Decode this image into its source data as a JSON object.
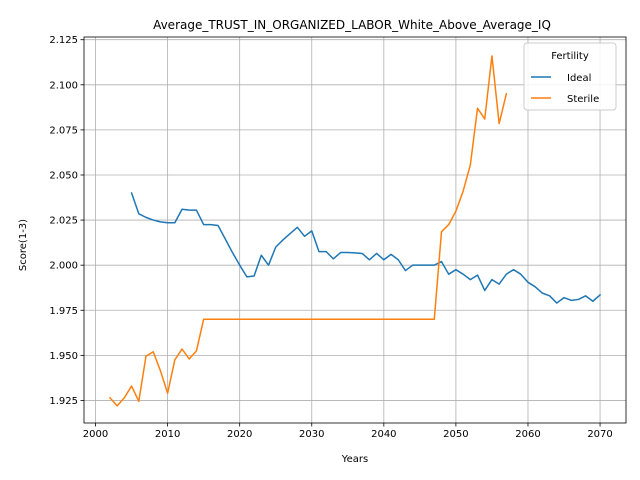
{
  "chart_data": {
    "type": "line",
    "title": "Average_TRUST_IN_ORGANIZED_LABOR_White_Above_Average_IQ",
    "xlabel": "Years",
    "ylabel": "Score(1-3)",
    "xlim": [
      1998.4,
      2073.6
    ],
    "ylim": [
      1.9125,
      2.1265
    ],
    "xticks": [
      2000,
      2010,
      2020,
      2030,
      2040,
      2050,
      2060,
      2070
    ],
    "yticks": [
      1.925,
      1.95,
      1.975,
      2.0,
      2.025,
      2.05,
      2.075,
      2.1,
      2.125
    ],
    "ytick_labels": [
      "1.925",
      "1.950",
      "1.975",
      "2.000",
      "2.025",
      "2.050",
      "2.075",
      "2.100",
      "2.125"
    ],
    "grid": true,
    "legend": {
      "title": "Fertility",
      "placement": "top-right"
    },
    "series": [
      {
        "name": "Ideal",
        "color": "#1f77b4",
        "x": [
          2005,
          2006,
          2007,
          2008,
          2009,
          2010,
          2011,
          2012,
          2013,
          2014,
          2015,
          2016,
          2017,
          2018,
          2019,
          2020,
          2021,
          2022,
          2023,
          2024,
          2025,
          2026,
          2027,
          2028,
          2029,
          2030,
          2031,
          2032,
          2033,
          2034,
          2035,
          2036,
          2037,
          2038,
          2039,
          2040,
          2041,
          2042,
          2043,
          2044,
          2045,
          2046,
          2047,
          2048,
          2049,
          2050,
          2051,
          2052,
          2053,
          2054,
          2055,
          2056,
          2057,
          2058,
          2059,
          2060,
          2061,
          2062,
          2063,
          2064,
          2065,
          2066,
          2067,
          2068,
          2069,
          2070
        ],
        "y": [
          2.04,
          2.0285,
          2.0265,
          2.025,
          2.024,
          2.0235,
          2.0235,
          2.031,
          2.0305,
          2.0305,
          2.0225,
          2.0225,
          2.022,
          2.0145,
          2.007,
          2.0,
          1.9935,
          1.994,
          2.0055,
          2.0,
          2.01,
          2.014,
          2.0175,
          2.021,
          2.016,
          2.019,
          2.0075,
          2.0075,
          2.0035,
          2.007,
          2.007,
          2.0068,
          2.0065,
          2.003,
          2.0065,
          2.003,
          2.006,
          2.003,
          1.997,
          2.0,
          2.0,
          2.0,
          2.0,
          2.002,
          1.995,
          1.9975,
          1.995,
          1.992,
          1.9945,
          1.986,
          1.992,
          1.9895,
          1.995,
          1.9975,
          1.995,
          1.9905,
          1.988,
          1.9845,
          1.983,
          1.979,
          1.982,
          1.9805,
          1.981,
          1.983,
          1.98,
          1.9835
        ]
      },
      {
        "name": "Sterile",
        "color": "#ff7f0e",
        "x": [
          2002,
          2003,
          2004,
          2005,
          2006,
          2007,
          2008,
          2009,
          2010,
          2011,
          2012,
          2013,
          2014,
          2015,
          2016,
          2017,
          2018,
          2019,
          2020,
          2021,
          2022,
          2023,
          2024,
          2025,
          2026,
          2027,
          2028,
          2029,
          2030,
          2031,
          2032,
          2033,
          2034,
          2035,
          2036,
          2037,
          2038,
          2039,
          2040,
          2041,
          2042,
          2043,
          2044,
          2045,
          2046,
          2047,
          2048,
          2049,
          2050,
          2051,
          2052,
          2053,
          2054,
          2055,
          2056,
          2057
        ],
        "y": [
          1.9265,
          1.922,
          1.9265,
          1.933,
          1.9245,
          1.9495,
          1.952,
          1.9415,
          1.929,
          1.9475,
          1.9535,
          1.948,
          1.9525,
          1.97,
          1.97,
          1.97,
          1.97,
          1.97,
          1.97,
          1.97,
          1.97,
          1.97,
          1.97,
          1.97,
          1.97,
          1.97,
          1.97,
          1.97,
          1.97,
          1.97,
          1.97,
          1.97,
          1.97,
          1.97,
          1.97,
          1.97,
          1.97,
          1.97,
          1.97,
          1.97,
          1.97,
          1.97,
          1.97,
          1.97,
          1.97,
          1.97,
          2.0185,
          2.0225,
          2.03,
          2.041,
          2.0555,
          2.087,
          2.081,
          2.116,
          2.0785,
          2.095
        ]
      }
    ]
  }
}
